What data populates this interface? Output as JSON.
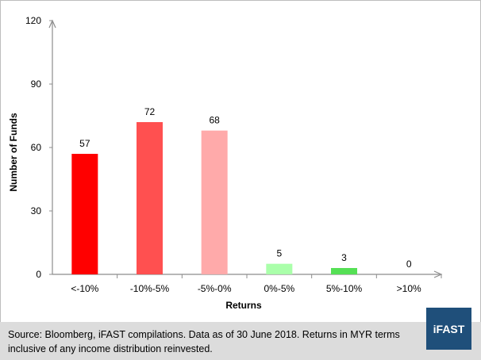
{
  "chart_data": {
    "type": "bar",
    "title": "",
    "xlabel": "Returns",
    "ylabel": "Number of Funds",
    "categories": [
      "<-10%",
      "-10%-5%",
      "-5%-0%",
      "0%-5%",
      "5%-10%",
      ">10%"
    ],
    "values": [
      57,
      72,
      68,
      5,
      3,
      0
    ],
    "data_labels": [
      "57",
      "72",
      "68",
      "5",
      "3",
      "0"
    ],
    "colors": [
      "#ff0000",
      "#ff5050",
      "#ffaaaa",
      "#aaffaa",
      "#55e055",
      "#55e055"
    ],
    "ylim": [
      0,
      120
    ],
    "yticks": [
      "0",
      "30",
      "60",
      "90",
      "120"
    ],
    "grid": false,
    "legend": "none"
  },
  "footer": {
    "source": "Source: Bloomberg, iFAST compilations. Data as of 30 June 2018.  Returns in MYR terms inclusive of any income distribution reinvested.",
    "logo": "iFAST"
  },
  "colors": {
    "axis": "#8c8c8c",
    "footer_bg": "#dcdcdc",
    "logo_bg": "#1f4f7a"
  }
}
